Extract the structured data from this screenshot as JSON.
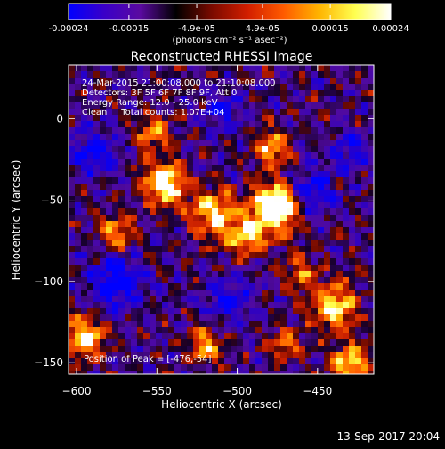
{
  "colorbar": {
    "tick_labels": [
      "-0.00024",
      "-0.00015",
      "-4.9e-05",
      "4.9e-05",
      "0.00015",
      "0.00024"
    ],
    "tick_values": [
      -0.00024,
      -0.00015,
      -4.9e-05,
      4.9e-05,
      0.00015,
      0.00024
    ],
    "range": [
      -0.00024,
      0.00024
    ],
    "unit_label": "(photons cm⁻² s⁻¹ asec⁻²)",
    "colormap": [
      "#0000ff",
      "#3a00c8",
      "#5a0aa0",
      "#000000",
      "#7a0a00",
      "#d21e00",
      "#ff5a00",
      "#ffb400",
      "#ffff50",
      "#ffffff"
    ]
  },
  "chart_data": {
    "type": "heatmap",
    "title": "Reconstructed RHESSI Image",
    "xlabel": "Heliocentric X (arcsec)",
    "ylabel": "Heliocentric Y (arcsec)",
    "xlim": [
      -605,
      -415
    ],
    "ylim": [
      -157,
      33
    ],
    "x_ticks": [
      -600,
      -550,
      -500,
      -450
    ],
    "x_tick_labels": [
      "−600",
      "−550",
      "−500",
      "−450"
    ],
    "y_ticks": [
      0,
      -50,
      -100,
      -150
    ],
    "y_tick_labels": [
      "0",
      "−50",
      "−100",
      "−150"
    ],
    "peak": [
      -476,
      -54
    ],
    "annotations": [
      "24-Mar-2015 21:00:08.000 to 21:10:08.000",
      "Detectors: 3F 5F 6F 7F 8F 9F, Att 0",
      "Energy Range: 12.0 - 25.0 keV",
      "Clean     Total counts: 1.07E+04"
    ],
    "peak_label": "Position of Peak = [-476,-54]"
  },
  "footer": {
    "timestamp": "13-Sep-2017 20:04"
  }
}
